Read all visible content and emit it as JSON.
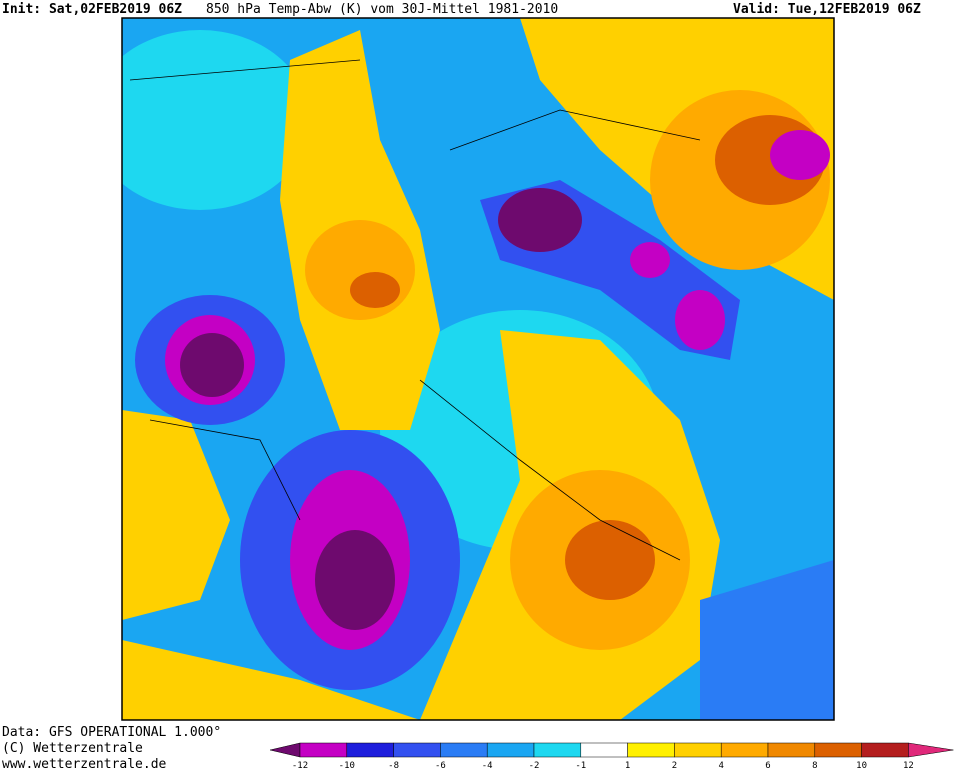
{
  "header": {
    "init": "Init: Sat,02FEB2019 06Z",
    "title": "850 hPa Temp-Abw (K) vom 30J-Mittel 1981-2010",
    "valid": "Valid: Tue,12FEB2019 06Z"
  },
  "footer": {
    "source": "Data: GFS OPERATIONAL 1.000°",
    "copyright": "(C) Wetterzentrale",
    "url": "www.wetterzentrale.de"
  },
  "colorbar": {
    "ticks": [
      "-12",
      "-10",
      "-8",
      "-6",
      "-4",
      "-2",
      "-1",
      "1",
      "2",
      "4",
      "6",
      "8",
      "10",
      "12"
    ],
    "colors": [
      "#6e0a6e",
      "#c400c4",
      "#1e1edc",
      "#3250f0",
      "#2a7cf5",
      "#1aa6f2",
      "#1ed8f0",
      "#ffffff",
      "#fff000",
      "#ffd000",
      "#ffaa00",
      "#f08800",
      "#dc6000",
      "#b41e1e",
      "#e0287a"
    ]
  }
}
